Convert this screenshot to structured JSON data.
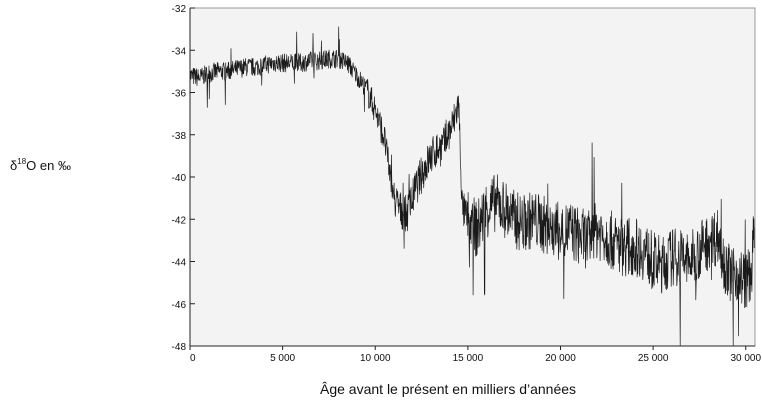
{
  "chart_data": {
    "type": "line",
    "title": "",
    "ylabel": {
      "prefix": "δ",
      "sup": "18",
      "suffix": "O en ‰"
    },
    "xlabel": "Âge avant le présent en milliers d’années",
    "xlim": [
      0,
      30500
    ],
    "ylim": [
      -48,
      -32
    ],
    "x_ticks": [
      0,
      5000,
      10000,
      15000,
      20000,
      25000,
      30000
    ],
    "x_tick_labels": [
      "0",
      "5 000",
      "10 000",
      "15 000",
      "20 000",
      "25 000",
      "30 000"
    ],
    "y_ticks": [
      -32,
      -34,
      -36,
      -38,
      -40,
      -42,
      -44,
      -46,
      -48
    ],
    "y_tick_labels": [
      "-32",
      "-34",
      "-36",
      "-38",
      "-40",
      "-42",
      "-44",
      "-46",
      "-48"
    ],
    "grid": false,
    "legend": "none",
    "colors": {
      "line": "#1a1a1a",
      "plot_bg": "#f3f3f3",
      "frame": "#222222"
    },
    "series": [
      {
        "x": [
          0,
          500,
          1000,
          1500,
          2000,
          2500,
          3000,
          3500,
          4000,
          4500,
          5000,
          5500,
          6000,
          6500,
          7000,
          7500,
          8000,
          8500,
          9000,
          9500,
          10000,
          10500,
          11000,
          11300,
          11700,
          12200,
          12700,
          13200,
          13700,
          14200,
          14500,
          14700,
          15000,
          15500,
          16000,
          16500,
          17000,
          17500,
          18000,
          18500,
          19000,
          19500,
          20000,
          20500,
          21000,
          21500,
          22000,
          22500,
          23000,
          23500,
          24000,
          24500,
          25000,
          25500,
          26000,
          26500,
          27000,
          27500,
          28000,
          28500,
          29000,
          29500,
          30000,
          30300,
          30500
        ],
        "y": [
          -35.2,
          -35.3,
          -35.1,
          -35.0,
          -35.0,
          -34.9,
          -34.8,
          -34.8,
          -34.7,
          -34.6,
          -34.6,
          -34.6,
          -34.6,
          -34.5,
          -34.5,
          -34.4,
          -34.4,
          -34.6,
          -35.2,
          -35.8,
          -36.8,
          -38.2,
          -41.0,
          -41.5,
          -41.8,
          -40.5,
          -39.5,
          -38.8,
          -38.5,
          -37.5,
          -36.5,
          -41.5,
          -42.0,
          -42.5,
          -41.5,
          -41.2,
          -41.5,
          -42.0,
          -42.2,
          -42.0,
          -42.2,
          -42.5,
          -42.6,
          -42.5,
          -42.8,
          -43.0,
          -42.5,
          -42.8,
          -43.2,
          -43.3,
          -43.3,
          -43.5,
          -44.0,
          -44.2,
          -43.8,
          -43.8,
          -44.0,
          -43.5,
          -43.0,
          -42.8,
          -44.5,
          -44.5,
          -45.0,
          -44.5,
          -42.0
        ]
      }
    ]
  }
}
